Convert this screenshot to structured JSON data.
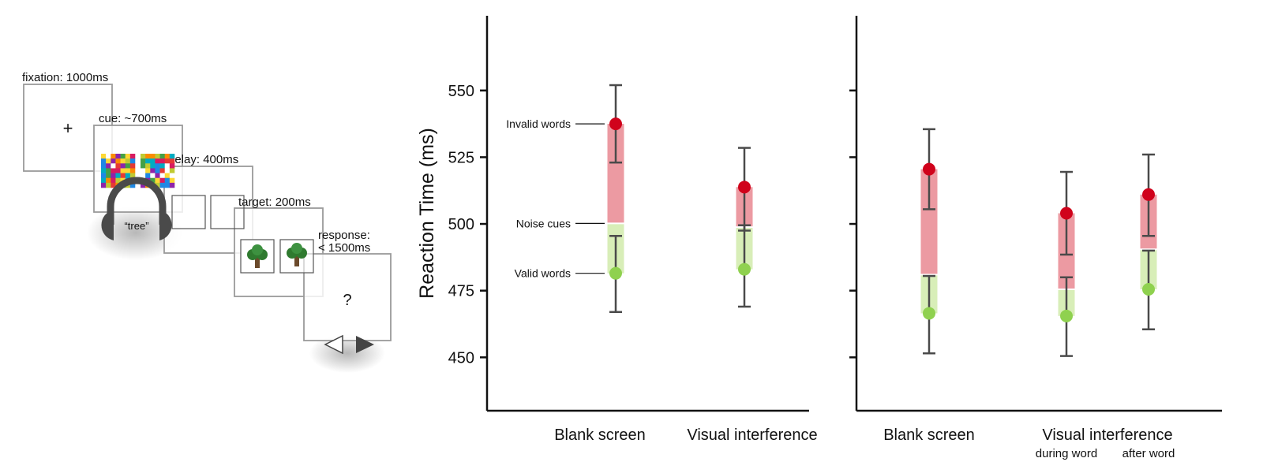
{
  "schematic": {
    "stages": [
      {
        "label": "fixation: 1000ms",
        "content": "+"
      },
      {
        "label": "cue: ~700ms",
        "audio_word": "“tree”"
      },
      {
        "label": "delay: 400ms"
      },
      {
        "label": "target: 200ms"
      },
      {
        "label": "response:",
        "label2": "< 1500ms",
        "content": "?"
      }
    ],
    "colors": {
      "frame": "#9a9a9a",
      "headphones": "#4a4a4a",
      "tree_leaf": "#2f7a2f",
      "tree_trunk": "#6b4a2b"
    }
  },
  "chart_data": [
    {
      "type": "dot-interval",
      "ylabel": "Reaction Time (ms)",
      "ylim": [
        430,
        578
      ],
      "yticks": [
        450,
        475,
        500,
        525,
        550
      ],
      "groups": [
        {
          "label": "Blank screen",
          "sublabel": "",
          "invalid": 537.5,
          "noise": 500.2,
          "valid": 481.5,
          "ci_invalid": [
            523,
            552
          ],
          "ci_valid": [
            467,
            495.5
          ]
        },
        {
          "label": "Visual interference",
          "sublabel": "",
          "invalid": 513.8,
          "noise": 498.8,
          "valid": 483,
          "ci_invalid": [
            497.5,
            528.5
          ],
          "ci_valid": [
            469,
            499.5
          ]
        }
      ],
      "annotations": [
        "Invalid words",
        "Noise cues",
        "Valid words"
      ]
    },
    {
      "type": "dot-interval",
      "ylim": [
        430,
        578
      ],
      "yticks": [
        450,
        475,
        500,
        525,
        550
      ],
      "groups": [
        {
          "label": "Blank screen",
          "sublabel": "",
          "invalid": 520.5,
          "noise": 481,
          "valid": 466.5,
          "ci_invalid": [
            505.5,
            535.5
          ],
          "ci_valid": [
            451.5,
            480.5
          ]
        },
        {
          "label": "Visual interference",
          "sublabel": "during word",
          "invalid": 504,
          "noise": 475.5,
          "valid": 465.5,
          "ci_invalid": [
            488.5,
            519.5
          ],
          "ci_valid": [
            450.5,
            480
          ]
        },
        {
          "label": "",
          "sublabel": "after word",
          "invalid": 511,
          "noise": 490.5,
          "valid": 475.5,
          "ci_invalid": [
            495.5,
            526
          ],
          "ci_valid": [
            460.5,
            490
          ]
        }
      ]
    }
  ],
  "colors": {
    "invalid": "#d0021b",
    "valid": "#8fd14f",
    "invalid_band": "#ec9aa2",
    "valid_band": "#d8eeb8",
    "interval": "#4a4a4a",
    "axis": "#111111"
  }
}
